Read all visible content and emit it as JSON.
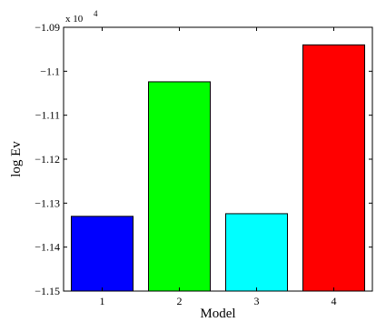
{
  "chart_data": {
    "type": "bar",
    "categories": [
      "1",
      "2",
      "3",
      "4"
    ],
    "values": [
      -11330,
      -11024,
      -11324,
      -10940
    ],
    "colors": [
      "#0000ff",
      "#00ff00",
      "#00ffff",
      "#ff0000"
    ],
    "xlabel": "Model",
    "ylabel": "log Ev",
    "ylim": [
      -11500,
      -10900
    ],
    "yticks": [
      -11500,
      -11400,
      -11300,
      -11200,
      -11100,
      -11000,
      -10900
    ],
    "ytick_labels": [
      "−1.15",
      "−1.14",
      "−1.13",
      "−1.12",
      "−1.11",
      "−1.1",
      "−1.09"
    ],
    "y_exponent_label": "x 10",
    "y_exponent_power": "4",
    "grid": false,
    "legend": false
  }
}
